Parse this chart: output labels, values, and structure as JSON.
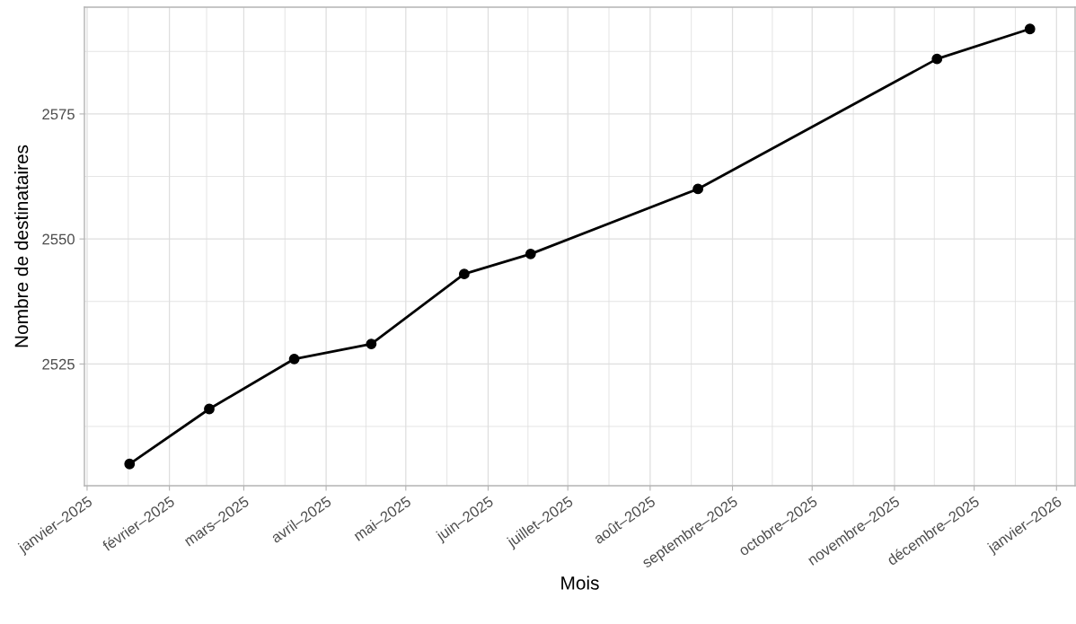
{
  "chart_data": {
    "type": "line",
    "xlabel": "Mois",
    "ylabel": "Nombre de destinataires",
    "x": [
      "2025-01-17",
      "2025-02-16",
      "2025-03-20",
      "2025-04-18",
      "2025-05-23",
      "2025-06-17",
      "2025-08-19",
      "2025-11-17",
      "2025-12-22"
    ],
    "series": [
      {
        "color": "#000000",
        "values": [
          2505,
          2516,
          2526,
          2529,
          2543,
          2547,
          2560,
          2586,
          2592
        ]
      }
    ],
    "xlim": [
      "2024-12-31",
      "2026-01-08"
    ],
    "xticks": [
      {
        "value": "2025-01-01",
        "label": "janvier–2025"
      },
      {
        "value": "2025-02-01",
        "label": "février–2025"
      },
      {
        "value": "2025-03-01",
        "label": "mars–2025"
      },
      {
        "value": "2025-04-01",
        "label": "avril–2025"
      },
      {
        "value": "2025-05-01",
        "label": "mai–2025"
      },
      {
        "value": "2025-06-01",
        "label": "juin–2025"
      },
      {
        "value": "2025-07-01",
        "label": "juillet–2025"
      },
      {
        "value": "2025-08-01",
        "label": "août–2025"
      },
      {
        "value": "2025-09-01",
        "label": "septembre–2025"
      },
      {
        "value": "2025-10-01",
        "label": "octobre–2025"
      },
      {
        "value": "2025-11-01",
        "label": "novembre–2025"
      },
      {
        "value": "2025-12-01",
        "label": "décembre–2025"
      },
      {
        "value": "2026-01-01",
        "label": "janvier–2026"
      }
    ],
    "ylim": [
      2500.65,
      2596.35
    ],
    "yticks": [
      2525,
      2550,
      2575
    ],
    "grid": true,
    "marker": "circle",
    "line_style": "solid"
  }
}
